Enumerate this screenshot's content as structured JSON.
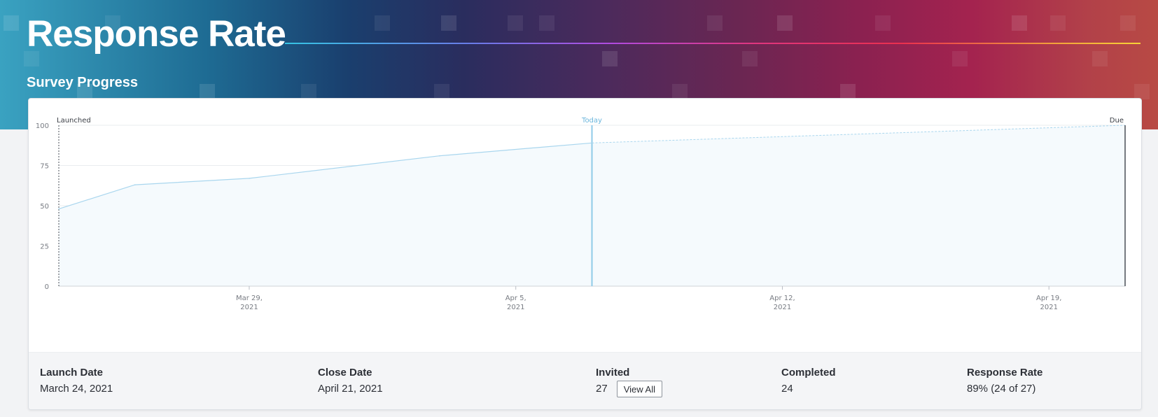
{
  "header": {
    "title": "Response Rate",
    "section_title": "Survey Progress"
  },
  "colors": {
    "line": "#a9d6ee",
    "area": "#f5fafd",
    "today": "#8fcbe8",
    "today_text": "#6bb6dc",
    "grid": "#e9ecef",
    "axis_text": "#777b82"
  },
  "chart_data": {
    "type": "area",
    "ylim": [
      0,
      100
    ],
    "yticks": [
      "0",
      "25",
      "50",
      "75",
      "100"
    ],
    "xlim": [
      "2021-03-24",
      "2021-04-21"
    ],
    "xticks": [
      {
        "date": "2021-03-29",
        "line1": "Mar 29,",
        "line2": "2021"
      },
      {
        "date": "2021-04-05",
        "line1": "Apr 5,",
        "line2": "2021"
      },
      {
        "date": "2021-04-12",
        "line1": "Apr 12,",
        "line2": "2021"
      },
      {
        "date": "2021-04-19",
        "line1": "Apr 19,",
        "line2": "2021"
      }
    ],
    "series": [
      {
        "points": [
          {
            "x": "2021-03-24",
            "y": 48
          },
          {
            "x": "2021-03-26",
            "y": 63
          },
          {
            "x": "2021-03-29",
            "y": 67
          },
          {
            "x": "2021-04-03",
            "y": 81
          },
          {
            "x": "2021-04-07",
            "y": 89
          }
        ]
      }
    ],
    "projection": [
      {
        "x": "2021-04-07",
        "y": 89
      },
      {
        "x": "2021-04-21",
        "y": 100
      }
    ],
    "markers": [
      {
        "key": "launched",
        "label": "Launched",
        "x": "2021-03-24"
      },
      {
        "key": "today",
        "label": "Today",
        "x": "2021-04-07"
      },
      {
        "key": "due",
        "label": "Due",
        "x": "2021-04-21"
      }
    ]
  },
  "stats": {
    "launch_date": {
      "label": "Launch Date",
      "value": "March 24, 2021"
    },
    "close_date": {
      "label": "Close Date",
      "value": "April 21, 2021"
    },
    "invited": {
      "label": "Invited",
      "value": "27",
      "button": "View All"
    },
    "completed": {
      "label": "Completed",
      "value": "24"
    },
    "response_rate": {
      "label": "Response Rate",
      "value": "89% (24 of 27)"
    }
  }
}
